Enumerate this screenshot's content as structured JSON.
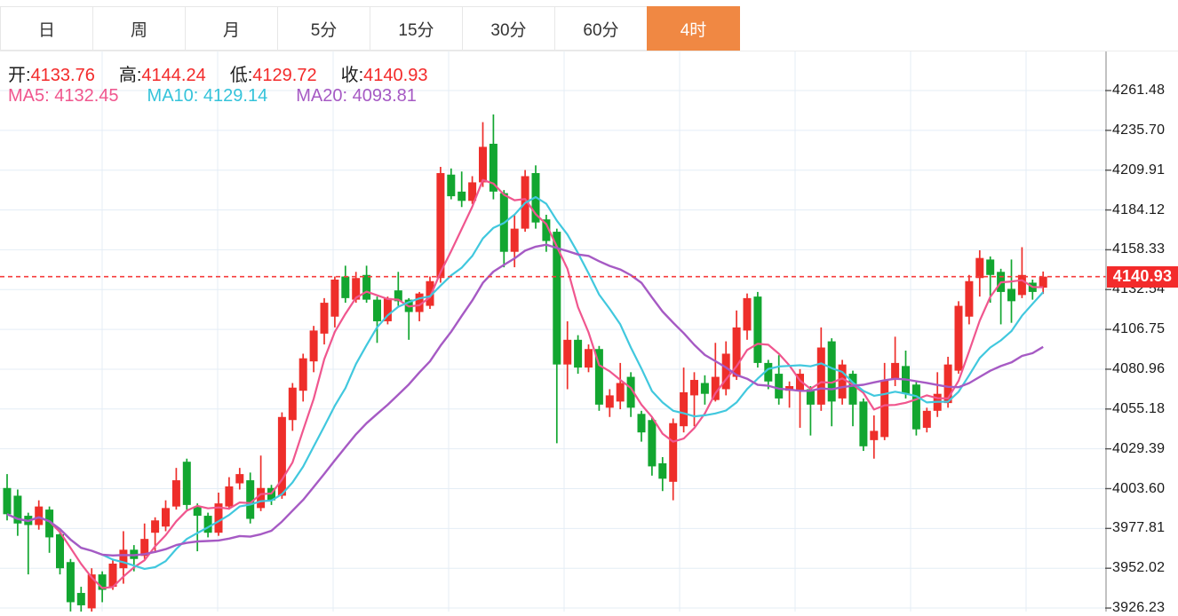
{
  "tabs": [
    {
      "name": "tab-day",
      "label": "日",
      "active": false
    },
    {
      "name": "tab-week",
      "label": "周",
      "active": false
    },
    {
      "name": "tab-month",
      "label": "月",
      "active": false
    },
    {
      "name": "tab-5min",
      "label": "5分",
      "active": false
    },
    {
      "name": "tab-15min",
      "label": "15分",
      "active": false
    },
    {
      "name": "tab-30min",
      "label": "30分",
      "active": false
    },
    {
      "name": "tab-60min",
      "label": "60分",
      "active": false
    },
    {
      "name": "tab-4hour",
      "label": "4时",
      "active": true
    }
  ],
  "ohlc": {
    "open_label": "开:",
    "open": "4133.76",
    "high_label": "高:",
    "high": "4144.24",
    "low_label": "低:",
    "low": "4129.72",
    "close_label": "收:",
    "close": "4140.93"
  },
  "ma": {
    "items": [
      {
        "label": "MA5:",
        "value": "4132.45",
        "color": "#f0568e"
      },
      {
        "label": "MA10:",
        "value": "4129.14",
        "color": "#35c3da"
      },
      {
        "label": "MA20:",
        "value": "4093.81",
        "color": "#a65ac4"
      }
    ]
  },
  "price_line": {
    "label": "4140.93",
    "price": 4140.93,
    "color": "#f53b3b"
  },
  "colors": {
    "up_candle": "#ee2e2a",
    "down_candle": "#12a630",
    "ma5": "#f0568e",
    "ma10": "#41c8de",
    "ma20": "#a65ac4",
    "grid": "#e4edf6",
    "axis_line": "#999999",
    "active_tab": "#f08843",
    "value_text": "#f32a2a",
    "badge": "#f32b2b"
  },
  "chart_data": {
    "type": "candlestick",
    "title": "",
    "legend": [
      "MA5",
      "MA10",
      "MA20"
    ],
    "grid": true,
    "legend_position": "top-left",
    "y_axis_side": "right",
    "y_ticks": [
      "4261.48",
      "4235.70",
      "4209.91",
      "4184.12",
      "4158.33",
      "4132.54",
      "4106.75",
      "4080.96",
      "4055.18",
      "4029.39",
      "4003.60",
      "3977.81",
      "3952.02",
      "3926.23"
    ],
    "y_tick_step": 25.79,
    "ylim": [
      3926.23,
      4261.48
    ],
    "current_price": 4140.93,
    "ma_periods": [
      5,
      10,
      20
    ],
    "candles_format": [
      "open",
      "high",
      "low",
      "close"
    ],
    "candles": [
      [
        4004,
        4013,
        3983,
        3987
      ],
      [
        3999,
        4003,
        3973,
        3981
      ],
      [
        3986,
        3988,
        3948,
        3980
      ],
      [
        3980,
        3996,
        3977,
        3992
      ],
      [
        3990,
        3992,
        3962,
        3972
      ],
      [
        3974,
        3976,
        3948,
        3952
      ],
      [
        3956,
        3958,
        3924,
        3930
      ],
      [
        3936,
        3940,
        3922,
        3928
      ],
      [
        3926,
        3952,
        3922,
        3948
      ],
      [
        3948,
        3950,
        3930,
        3938
      ],
      [
        3940,
        3958,
        3938,
        3955
      ],
      [
        3952,
        3976,
        3942,
        3964
      ],
      [
        3964,
        3967,
        3950,
        3958
      ],
      [
        3960,
        3981,
        3958,
        3971
      ],
      [
        3975,
        3985,
        3962,
        3983
      ],
      [
        3979,
        3996,
        3976,
        3991
      ],
      [
        3992,
        4017,
        3990,
        4009
      ],
      [
        4021,
        4023,
        3990,
        3993
      ],
      [
        3992,
        3994,
        3963,
        3986
      ],
      [
        3986,
        3988,
        3972,
        3975
      ],
      [
        3975,
        4001,
        3973,
        3994
      ],
      [
        3992,
        4011,
        3990,
        4005
      ],
      [
        4007,
        4017,
        4003,
        4013
      ],
      [
        4009,
        4014,
        3981,
        3984
      ],
      [
        3991,
        4025,
        3989,
        4004
      ],
      [
        4004,
        4006,
        3993,
        3996
      ],
      [
        3999,
        4053,
        3997,
        4050
      ],
      [
        4048,
        4072,
        4041,
        4069
      ],
      [
        4067,
        4091,
        4060,
        4088
      ],
      [
        4086,
        4109,
        4079,
        4106
      ],
      [
        4104,
        4127,
        4097,
        4124
      ],
      [
        4115,
        4141,
        4108,
        4139
      ],
      [
        4141,
        4148,
        4124,
        4127
      ],
      [
        4126,
        4144,
        4124,
        4140
      ],
      [
        4142,
        4148,
        4124,
        4126
      ],
      [
        4126,
        4128,
        4098,
        4112
      ],
      [
        4112,
        4128,
        4110,
        4127
      ],
      [
        4132,
        4144,
        4122,
        4125
      ],
      [
        4126,
        4127,
        4100,
        4118
      ],
      [
        4118,
        4131,
        4112,
        4130
      ],
      [
        4122,
        4141,
        4120,
        4138
      ],
      [
        4140,
        4212,
        4137,
        4208
      ],
      [
        4207,
        4211,
        4191,
        4193
      ],
      [
        4196,
        4209,
        4186,
        4190
      ],
      [
        4190,
        4206,
        4188,
        4202
      ],
      [
        4202,
        4241,
        4199,
        4225
      ],
      [
        4227,
        4246,
        4191,
        4196
      ],
      [
        4195,
        4197,
        4147,
        4157
      ],
      [
        4157,
        4181,
        4147,
        4172
      ],
      [
        4172,
        4210,
        4170,
        4206
      ],
      [
        4208,
        4213,
        4172,
        4176
      ],
      [
        4178,
        4181,
        4157,
        4164
      ],
      [
        4170,
        4172,
        4033,
        4084
      ],
      [
        4084,
        4112,
        4068,
        4100
      ],
      [
        4100,
        4103,
        4078,
        4082
      ],
      [
        4082,
        4097,
        4079,
        4094
      ],
      [
        4094,
        4096,
        4054,
        4058
      ],
      [
        4056,
        4068,
        4050,
        4064
      ],
      [
        4060,
        4085,
        4055,
        4072
      ],
      [
        4076,
        4079,
        4050,
        4056
      ],
      [
        4052,
        4054,
        4034,
        4040
      ],
      [
        4048,
        4050,
        4012,
        4018
      ],
      [
        4020,
        4024,
        4002,
        4010
      ],
      [
        4008,
        4049,
        3996,
        4046
      ],
      [
        4044,
        4082,
        4040,
        4066
      ],
      [
        4064,
        4079,
        4044,
        4074
      ],
      [
        4072,
        4077,
        4058,
        4065
      ],
      [
        4061,
        4098,
        4060,
        4076
      ],
      [
        4068,
        4099,
        4064,
        4091
      ],
      [
        4076,
        4119,
        4074,
        4108
      ],
      [
        4106,
        4130,
        4100,
        4127
      ],
      [
        4128,
        4131,
        4082,
        4085
      ],
      [
        4085,
        4087,
        4068,
        4073
      ],
      [
        4078,
        4090,
        4058,
        4062
      ],
      [
        4067,
        4073,
        4056,
        4070
      ],
      [
        4067,
        4081,
        4043,
        4078
      ],
      [
        4068,
        4070,
        4038,
        4058
      ],
      [
        4058,
        4108,
        4054,
        4095
      ],
      [
        4099,
        4101,
        4044,
        4060
      ],
      [
        4062,
        4087,
        4058,
        4084
      ],
      [
        4078,
        4080,
        4044,
        4058
      ],
      [
        4060,
        4062,
        4028,
        4031
      ],
      [
        4035,
        4051,
        4023,
        4041
      ],
      [
        4037,
        4085,
        4035,
        4074
      ],
      [
        4074,
        4102,
        4070,
        4085
      ],
      [
        4083,
        4093,
        4062,
        4065
      ],
      [
        4071,
        4073,
        4038,
        4042
      ],
      [
        4043,
        4056,
        4040,
        4054
      ],
      [
        4054,
        4079,
        4050,
        4065
      ],
      [
        4059,
        4089,
        4056,
        4084
      ],
      [
        4080,
        4125,
        4078,
        4122
      ],
      [
        4115,
        4142,
        4110,
        4138
      ],
      [
        4140,
        4158,
        4128,
        4153
      ],
      [
        4152,
        4154,
        4124,
        4142
      ],
      [
        4144,
        4146,
        4110,
        4131
      ],
      [
        4133,
        4152,
        4111,
        4125
      ],
      [
        4129,
        4160,
        4127,
        4142
      ],
      [
        4137,
        4139,
        4126,
        4131
      ],
      [
        4133.76,
        4144.24,
        4129.72,
        4140.93
      ]
    ]
  }
}
